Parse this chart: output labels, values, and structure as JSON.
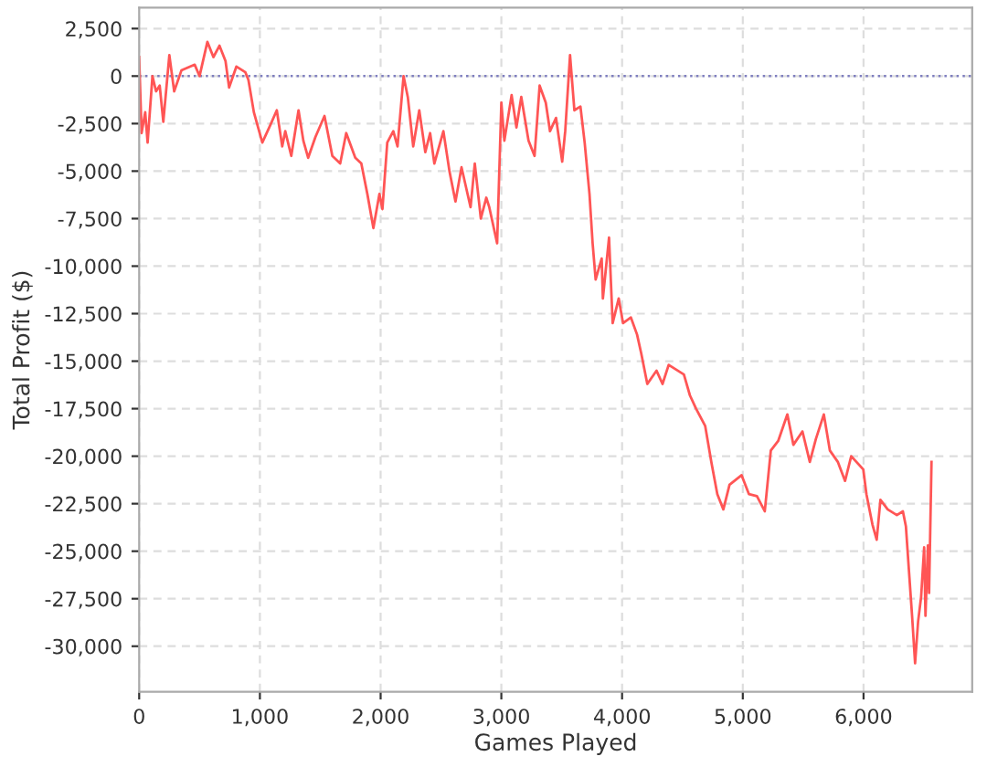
{
  "chart_data": {
    "type": "line",
    "xlabel": "Games Played",
    "ylabel": "Total Profit ($)",
    "xlim": [
      0,
      6900
    ],
    "ylim": [
      -32400,
      3600
    ],
    "xticks": [
      {
        "value": 0,
        "label": "0"
      },
      {
        "value": 1000,
        "label": "1,000"
      },
      {
        "value": 2000,
        "label": "2,000"
      },
      {
        "value": 3000,
        "label": "3,000"
      },
      {
        "value": 4000,
        "label": "4,000"
      },
      {
        "value": 5000,
        "label": "5,000"
      },
      {
        "value": 6000,
        "label": "6,000"
      }
    ],
    "yticks": [
      {
        "value": 2500,
        "label": "2,500"
      },
      {
        "value": 0,
        "label": "0"
      },
      {
        "value": -2500,
        "label": "-2,500"
      },
      {
        "value": -5000,
        "label": "-5,000"
      },
      {
        "value": -7500,
        "label": "-7,500"
      },
      {
        "value": -10000,
        "label": "-10,000"
      },
      {
        "value": -12500,
        "label": "-12,500"
      },
      {
        "value": -15000,
        "label": "-15,000"
      },
      {
        "value": -17500,
        "label": "-17,500"
      },
      {
        "value": -20000,
        "label": "-20,000"
      },
      {
        "value": -22500,
        "label": "-22,500"
      },
      {
        "value": -25000,
        "label": "-25,000"
      },
      {
        "value": -27500,
        "label": "-27,500"
      },
      {
        "value": -30000,
        "label": "-30,000"
      }
    ],
    "grid": true,
    "marker": "none",
    "line_style": "solid",
    "ref_lines": [
      {
        "axis": "y",
        "value": 0,
        "label": null,
        "color": "#7f7fbf",
        "line_style": "dotted"
      }
    ],
    "series": [
      {
        "color": "#ff5555",
        "x": [
          0,
          20,
          50,
          70,
          110,
          140,
          170,
          200,
          250,
          290,
          350,
          460,
          500,
          565,
          615,
          665,
          715,
          745,
          805,
          880,
          905,
          950,
          1020,
          1085,
          1140,
          1185,
          1210,
          1260,
          1320,
          1360,
          1400,
          1460,
          1535,
          1600,
          1665,
          1715,
          1790,
          1840,
          1890,
          1940,
          1990,
          2015,
          2055,
          2105,
          2140,
          2190,
          2225,
          2270,
          2320,
          2370,
          2410,
          2445,
          2520,
          2570,
          2620,
          2670,
          2745,
          2780,
          2830,
          2875,
          2900,
          2965,
          3000,
          3025,
          3085,
          3125,
          3165,
          3225,
          3275,
          3317,
          3368,
          3403,
          3453,
          3504,
          3529,
          3569,
          3605,
          3655,
          3690,
          3730,
          3756,
          3781,
          3831,
          3841,
          3892,
          3922,
          3972,
          4008,
          4073,
          4124,
          4159,
          4209,
          4285,
          4335,
          4386,
          4512,
          4562,
          4613,
          4688,
          4739,
          4789,
          4839,
          4890,
          4990,
          5051,
          5117,
          5182,
          5232,
          5293,
          5369,
          5419,
          5494,
          5555,
          5605,
          5671,
          5721,
          5787,
          5847,
          5898,
          5998,
          6024,
          6074,
          6109,
          6140,
          6200,
          6276,
          6326,
          6351,
          6377,
          6402,
          6427,
          6452,
          6477,
          6502,
          6513,
          6533,
          6543,
          6563
        ],
        "values": [
          1000,
          -3000,
          -1900,
          -3500,
          0,
          -800,
          -500,
          -2400,
          1100,
          -800,
          300,
          600,
          0,
          1800,
          1000,
          1600,
          800,
          -600,
          500,
          200,
          -200,
          -1900,
          -3500,
          -2600,
          -1800,
          -3700,
          -2900,
          -4200,
          -1800,
          -3400,
          -4300,
          -3200,
          -2100,
          -4200,
          -4600,
          -3000,
          -4300,
          -4600,
          -6200,
          -8000,
          -6200,
          -7000,
          -3500,
          -2900,
          -3700,
          0,
          -1100,
          -3700,
          -1800,
          -4000,
          -3000,
          -4600,
          -2900,
          -5000,
          -6600,
          -4800,
          -6900,
          -4600,
          -7500,
          -6400,
          -6900,
          -8800,
          -1400,
          -3400,
          -1000,
          -2700,
          -1100,
          -3400,
          -4200,
          -500,
          -1400,
          -2900,
          -2200,
          -4500,
          -2900,
          1100,
          -1800,
          -1600,
          -3500,
          -6200,
          -8800,
          -10700,
          -9600,
          -11700,
          -8500,
          -13000,
          -11700,
          -13000,
          -12700,
          -13600,
          -14600,
          -16200,
          -15500,
          -16200,
          -15200,
          -15700,
          -16800,
          -17500,
          -18400,
          -20300,
          -22000,
          -22800,
          -21500,
          -21000,
          -22000,
          -22100,
          -22900,
          -19700,
          -19200,
          -17800,
          -19400,
          -18700,
          -20300,
          -19100,
          -17800,
          -19700,
          -20300,
          -21300,
          -20000,
          -20700,
          -22000,
          -23600,
          -24400,
          -22300,
          -22800,
          -23100,
          -22900,
          -23700,
          -26100,
          -28400,
          -30900,
          -28700,
          -27400,
          -24800,
          -28400,
          -24700,
          -27200,
          -20300
        ]
      }
    ]
  }
}
